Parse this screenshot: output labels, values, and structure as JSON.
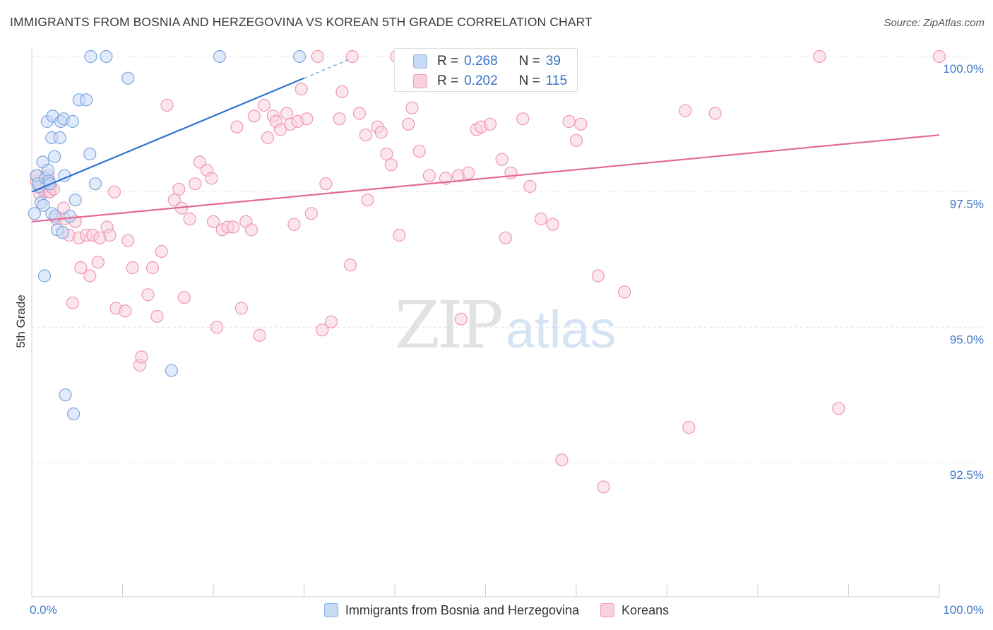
{
  "title": "IMMIGRANTS FROM BOSNIA AND HERZEGOVINA VS KOREAN 5TH GRADE CORRELATION CHART",
  "source": "Source: ZipAtlas.com",
  "watermark": {
    "zip": "ZIP",
    "atlas": "atlas"
  },
  "legend": {
    "blue_label": "Immigrants from Bosnia and Herzegovina",
    "pink_label": "Koreans"
  },
  "stats": {
    "r_label": "R =",
    "n_label": "N =",
    "blue": {
      "r": "0.268",
      "n": "39"
    },
    "pink": {
      "r": "0.202",
      "n": "115"
    }
  },
  "colors": {
    "blue_fill": "#c6d9f5",
    "blue_stroke": "#7ea7de",
    "blue_line": "#2f74cf",
    "pink_fill": "#f9d1de",
    "pink_stroke": "#ee97b3",
    "pink_line": "#e46a93",
    "axis_label": "#3f78c9",
    "grid": "#e4e4e4"
  },
  "chart_data": {
    "type": "scatter",
    "title": "IMMIGRANTS FROM BOSNIA AND HERZEGOVINA VS KOREAN 5TH GRADE CORRELATION CHART",
    "xlabel": "",
    "ylabel": "5th Grade",
    "xlim": [
      0,
      100
    ],
    "ylim": [
      90.5,
      100.2
    ],
    "x_tick_labels": [
      "0.0%",
      "100.0%"
    ],
    "y_ticks": [
      {
        "value": 100.0,
        "label": "100.0%"
      },
      {
        "value": 97.5,
        "label": "97.5%"
      },
      {
        "value": 95.0,
        "label": "95.0%"
      },
      {
        "value": 92.5,
        "label": "92.5%"
      }
    ],
    "series": [
      {
        "name": "Immigrants from Bosnia and Herzegovina",
        "color": "blue",
        "r": 0.268,
        "n": 39,
        "trend": {
          "x0": 0,
          "y0": 97.5,
          "x1": 30,
          "y1": 99.6,
          "dash_to_x": 35,
          "dash_to_y": 99.95
        },
        "points": [
          [
            0.5,
            97.8
          ],
          [
            0.8,
            97.6
          ],
          [
            1.0,
            97.3
          ],
          [
            1.2,
            98.05
          ],
          [
            0.3,
            97.1
          ],
          [
            0.7,
            97.65
          ],
          [
            1.5,
            97.75
          ],
          [
            1.8,
            97.9
          ],
          [
            1.9,
            97.7
          ],
          [
            2.0,
            97.65
          ],
          [
            1.7,
            98.8
          ],
          [
            2.2,
            98.5
          ],
          [
            2.5,
            98.15
          ],
          [
            2.3,
            98.9
          ],
          [
            3.2,
            98.8
          ],
          [
            3.5,
            98.85
          ],
          [
            3.1,
            98.5
          ],
          [
            4.5,
            98.8
          ],
          [
            3.6,
            97.8
          ],
          [
            4.8,
            97.35
          ],
          [
            5.2,
            99.2
          ],
          [
            6.0,
            99.2
          ],
          [
            6.4,
            98.2
          ],
          [
            7.0,
            97.65
          ],
          [
            1.3,
            97.25
          ],
          [
            2.2,
            97.1
          ],
          [
            2.6,
            97.05
          ],
          [
            2.8,
            96.8
          ],
          [
            3.4,
            96.75
          ],
          [
            4.2,
            97.05
          ],
          [
            1.4,
            95.95
          ],
          [
            3.7,
            93.75
          ],
          [
            4.6,
            93.4
          ],
          [
            6.5,
            100.0
          ],
          [
            8.2,
            100.0
          ],
          [
            10.6,
            99.6
          ],
          [
            20.7,
            100.0
          ],
          [
            29.5,
            100.0
          ],
          [
            15.4,
            94.2
          ]
        ]
      },
      {
        "name": "Koreans",
        "color": "pink",
        "r": 0.202,
        "n": 115,
        "trend": {
          "x0": 0,
          "y0": 96.95,
          "x1": 100,
          "y1": 98.55
        },
        "points": [
          [
            0.5,
            97.7
          ],
          [
            0.6,
            97.8
          ],
          [
            0.9,
            97.45
          ],
          [
            1.0,
            97.6
          ],
          [
            1.1,
            97.55
          ],
          [
            1.6,
            97.65
          ],
          [
            1.8,
            97.8
          ],
          [
            1.9,
            97.5
          ],
          [
            2.0,
            97.5
          ],
          [
            2.1,
            97.6
          ],
          [
            2.4,
            97.55
          ],
          [
            2.7,
            97.0
          ],
          [
            3.5,
            97.2
          ],
          [
            3.6,
            97.0
          ],
          [
            4.1,
            96.7
          ],
          [
            4.5,
            95.45
          ],
          [
            4.8,
            96.95
          ],
          [
            5.2,
            96.65
          ],
          [
            5.4,
            96.1
          ],
          [
            6.0,
            96.7
          ],
          [
            6.4,
            95.95
          ],
          [
            6.7,
            96.7
          ],
          [
            7.3,
            96.2
          ],
          [
            7.5,
            96.65
          ],
          [
            8.3,
            96.85
          ],
          [
            8.6,
            96.7
          ],
          [
            9.1,
            97.5
          ],
          [
            9.3,
            95.35
          ],
          [
            10.3,
            95.3
          ],
          [
            10.6,
            96.6
          ],
          [
            11.1,
            96.1
          ],
          [
            11.9,
            94.3
          ],
          [
            12.1,
            94.45
          ],
          [
            12.8,
            95.6
          ],
          [
            13.3,
            96.1
          ],
          [
            13.8,
            95.2
          ],
          [
            14.3,
            96.4
          ],
          [
            14.9,
            99.1
          ],
          [
            15.7,
            97.35
          ],
          [
            16.2,
            97.55
          ],
          [
            16.5,
            97.2
          ],
          [
            16.8,
            95.55
          ],
          [
            17.4,
            97.0
          ],
          [
            18.0,
            97.65
          ],
          [
            18.5,
            98.05
          ],
          [
            19.3,
            97.9
          ],
          [
            19.8,
            97.75
          ],
          [
            20.0,
            96.95
          ],
          [
            20.4,
            95.0
          ],
          [
            21.0,
            96.8
          ],
          [
            21.6,
            96.85
          ],
          [
            22.2,
            96.85
          ],
          [
            22.6,
            98.7
          ],
          [
            23.1,
            95.35
          ],
          [
            23.6,
            96.95
          ],
          [
            24.2,
            96.8
          ],
          [
            24.5,
            98.9
          ],
          [
            25.1,
            94.85
          ],
          [
            25.6,
            99.1
          ],
          [
            26.0,
            98.5
          ],
          [
            26.6,
            98.9
          ],
          [
            26.9,
            98.8
          ],
          [
            27.4,
            98.65
          ],
          [
            28.1,
            98.95
          ],
          [
            28.5,
            98.75
          ],
          [
            28.9,
            96.9
          ],
          [
            29.3,
            98.8
          ],
          [
            29.7,
            99.4
          ],
          [
            30.3,
            98.85
          ],
          [
            30.8,
            97.1
          ],
          [
            31.5,
            100.0
          ],
          [
            32.0,
            94.95
          ],
          [
            32.4,
            97.65
          ],
          [
            33.0,
            95.1
          ],
          [
            33.9,
            98.85
          ],
          [
            34.2,
            99.35
          ],
          [
            35.1,
            96.15
          ],
          [
            35.3,
            100.0
          ],
          [
            36.1,
            98.95
          ],
          [
            36.8,
            98.55
          ],
          [
            37.0,
            97.35
          ],
          [
            38.1,
            98.7
          ],
          [
            38.5,
            98.6
          ],
          [
            39.1,
            98.2
          ],
          [
            39.6,
            98.0
          ],
          [
            40.2,
            100.0
          ],
          [
            40.5,
            96.7
          ],
          [
            41.5,
            98.75
          ],
          [
            41.9,
            99.05
          ],
          [
            42.3,
            100.0
          ],
          [
            42.7,
            98.25
          ],
          [
            43.8,
            97.8
          ],
          [
            45.1,
            100.0
          ],
          [
            45.6,
            97.75
          ],
          [
            47.0,
            97.8
          ],
          [
            47.3,
            95.15
          ],
          [
            48.1,
            97.85
          ],
          [
            49.0,
            98.65
          ],
          [
            49.5,
            98.7
          ],
          [
            50.5,
            98.75
          ],
          [
            51.8,
            98.1
          ],
          [
            52.2,
            96.65
          ],
          [
            52.8,
            97.85
          ],
          [
            54.1,
            98.85
          ],
          [
            54.9,
            97.6
          ],
          [
            56.1,
            97.0
          ],
          [
            57.4,
            96.9
          ],
          [
            59.2,
            98.8
          ],
          [
            60.0,
            98.45
          ],
          [
            60.5,
            98.75
          ],
          [
            62.4,
            95.95
          ],
          [
            63.0,
            92.05
          ],
          [
            65.3,
            95.65
          ],
          [
            72.0,
            99.0
          ],
          [
            72.4,
            93.15
          ],
          [
            75.3,
            98.95
          ],
          [
            86.8,
            100.0
          ],
          [
            88.9,
            93.5
          ],
          [
            100.0,
            100.0
          ],
          [
            58.4,
            92.55
          ]
        ]
      }
    ]
  }
}
